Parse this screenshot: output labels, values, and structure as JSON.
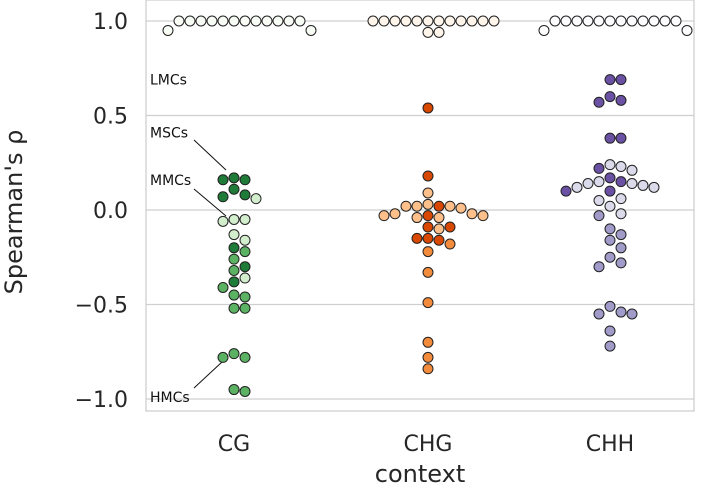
{
  "chart_data": {
    "type": "scatter",
    "subtype": "swarm",
    "title": "",
    "xlabel": "context",
    "ylabel": "Spearman's ρ",
    "categories": [
      "CG",
      "CHG",
      "CHH"
    ],
    "ylim": [
      -1.1,
      1.1
    ],
    "yticks": [
      {
        "value": 1.0,
        "label": "1.0"
      },
      {
        "value": 0.5,
        "label": "0.5"
      },
      {
        "value": 0.0,
        "label": "0.0"
      },
      {
        "value": -0.5,
        "label": "−0.5"
      },
      {
        "value": -1.0,
        "label": "−1.0"
      }
    ],
    "grid": true,
    "colors": {
      "CG": {
        "LMC": "#f7fcf5",
        "MSC": "#1e7b38",
        "MMC": "#d3eecd",
        "HMC": "#5bb263"
      },
      "CHG": {
        "LMC": "#fff5eb",
        "MSC": "#d94801",
        "MMC": "#fdc08a",
        "HMC": "#f38b3c"
      },
      "CHH": {
        "LMC": "#fcfbfd",
        "MSC": "#6a51a3",
        "MMC": "#dadaeb",
        "HMC": "#a09bc8"
      }
    },
    "annotations": [
      {
        "text": "LMCs",
        "category": "CG",
        "y": 0.69
      },
      {
        "text": "MSCs",
        "category": "CG",
        "y": 0.41
      },
      {
        "text": "MMCs",
        "category": "CG",
        "y": 0.16
      },
      {
        "text": "HMCs",
        "category": "CG",
        "y": -0.99
      }
    ],
    "series": [
      {
        "category": "CG",
        "cls": "LMC",
        "values": [
          1.0,
          1.0,
          1.0,
          1.0,
          1.0,
          1.0,
          1.0,
          1.0,
          1.0,
          1.0,
          1.0,
          1.0,
          0.95,
          0.95
        ]
      },
      {
        "category": "CG",
        "cls": "MSC",
        "values": [
          0.17,
          0.16,
          0.16,
          0.11,
          0.08,
          0.07,
          -0.2,
          -0.3,
          -0.38
        ]
      },
      {
        "category": "CG",
        "cls": "MMC",
        "values": [
          0.06,
          -0.05,
          -0.05,
          -0.06,
          -0.13,
          -0.16,
          -0.36
        ]
      },
      {
        "category": "CG",
        "cls": "HMC",
        "values": [
          -0.22,
          -0.26,
          -0.32,
          -0.41,
          -0.45,
          -0.46,
          -0.52,
          -0.52,
          -0.76,
          -0.78,
          -0.78,
          -0.95,
          -0.96
        ]
      },
      {
        "category": "CHG",
        "cls": "LMC",
        "values": [
          1.0,
          1.0,
          1.0,
          1.0,
          1.0,
          1.0,
          1.0,
          1.0,
          1.0,
          1.0,
          1.0,
          1.0,
          0.94,
          0.94
        ]
      },
      {
        "category": "CHG",
        "cls": "MSC",
        "values": [
          0.54,
          0.18,
          0.02,
          -0.03,
          -0.09,
          -0.09,
          -0.15,
          -0.15,
          -0.16
        ]
      },
      {
        "category": "CHG",
        "cls": "MMC",
        "values": [
          0.09,
          0.03,
          0.02,
          0.02,
          0.02,
          0.01,
          -0.02,
          -0.02,
          -0.03,
          -0.03,
          -0.04,
          -0.04,
          -0.1
        ]
      },
      {
        "category": "CHG",
        "cls": "HMC",
        "values": [
          -0.18,
          -0.22,
          -0.33,
          -0.49,
          -0.7,
          -0.78,
          -0.84
        ]
      },
      {
        "category": "CHH",
        "cls": "LMC",
        "values": [
          1.0,
          1.0,
          1.0,
          1.0,
          1.0,
          1.0,
          1.0,
          1.0,
          1.0,
          1.0,
          1.0,
          1.0,
          0.95,
          0.95
        ]
      },
      {
        "category": "CHH",
        "cls": "MSC",
        "values": [
          0.69,
          0.69,
          0.6,
          0.58,
          0.57,
          0.38,
          0.38,
          0.22,
          0.17,
          0.15,
          0.1,
          0.1
        ]
      },
      {
        "category": "CHH",
        "cls": "MMC",
        "values": [
          0.24,
          0.23,
          0.21,
          0.15,
          0.14,
          0.14,
          0.13,
          0.12,
          0.12,
          0.06,
          0.05,
          0.02,
          -0.02
        ]
      },
      {
        "category": "CHH",
        "cls": "HMC",
        "values": [
          -0.03,
          -0.1,
          -0.13,
          -0.16,
          -0.2,
          -0.25,
          -0.28,
          -0.3,
          -0.51,
          -0.54,
          -0.55,
          -0.55,
          -0.64,
          -0.72
        ]
      }
    ]
  }
}
